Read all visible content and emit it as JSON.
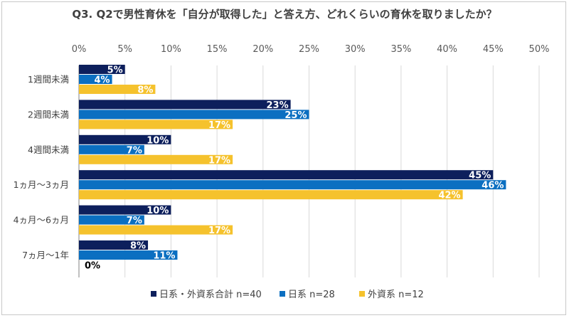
{
  "chart_data": {
    "type": "bar",
    "orientation": "horizontal",
    "title": "Q3. Q2で男性育休を「自分が取得した」と答え方、どれくらいの育休を取りましたか？",
    "xlabel": "",
    "ylabel": "",
    "xlim": [
      0,
      50
    ],
    "ticks": [
      0,
      5,
      10,
      15,
      20,
      25,
      30,
      35,
      40,
      45,
      50
    ],
    "tick_suffix": "%",
    "categories": [
      "1週間未満",
      "2週間未満",
      "4週間未満",
      "1ヵ月～3ヵ月",
      "4ヵ月～6ヵ月",
      "7ヵ月～1年"
    ],
    "series": [
      {
        "name": "日系・外資系合計 n=40",
        "color": "#0d1f5c",
        "label_color": "#ffffff",
        "values": [
          5,
          23,
          10,
          45,
          10,
          8
        ]
      },
      {
        "name": "日系 n=28",
        "color": "#0b6fc1",
        "label_color": "#ffffff",
        "values": [
          4,
          25,
          7,
          46,
          7,
          11
        ]
      },
      {
        "name": "外資系 n=12",
        "color": "#f5c22d",
        "label_color": "#ffffff",
        "values": [
          8,
          17,
          17,
          42,
          17,
          0
        ]
      }
    ],
    "data_labels": [
      [
        "5%",
        "23%",
        "10%",
        "45%",
        "10%",
        "8%"
      ],
      [
        "4%",
        "25%",
        "7%",
        "46%",
        "7%",
        "11%"
      ],
      [
        "8%",
        "17%",
        "17%",
        "42%",
        "17%",
        "0%"
      ]
    ],
    "bar_lengths": [
      [
        5,
        23,
        10,
        45,
        10,
        7.5
      ],
      [
        3.6,
        25,
        7.1,
        46.4,
        7.1,
        10.7
      ],
      [
        8.3,
        16.7,
        16.7,
        41.7,
        16.7,
        0
      ]
    ],
    "legend_position": "bottom",
    "grid": true
  }
}
